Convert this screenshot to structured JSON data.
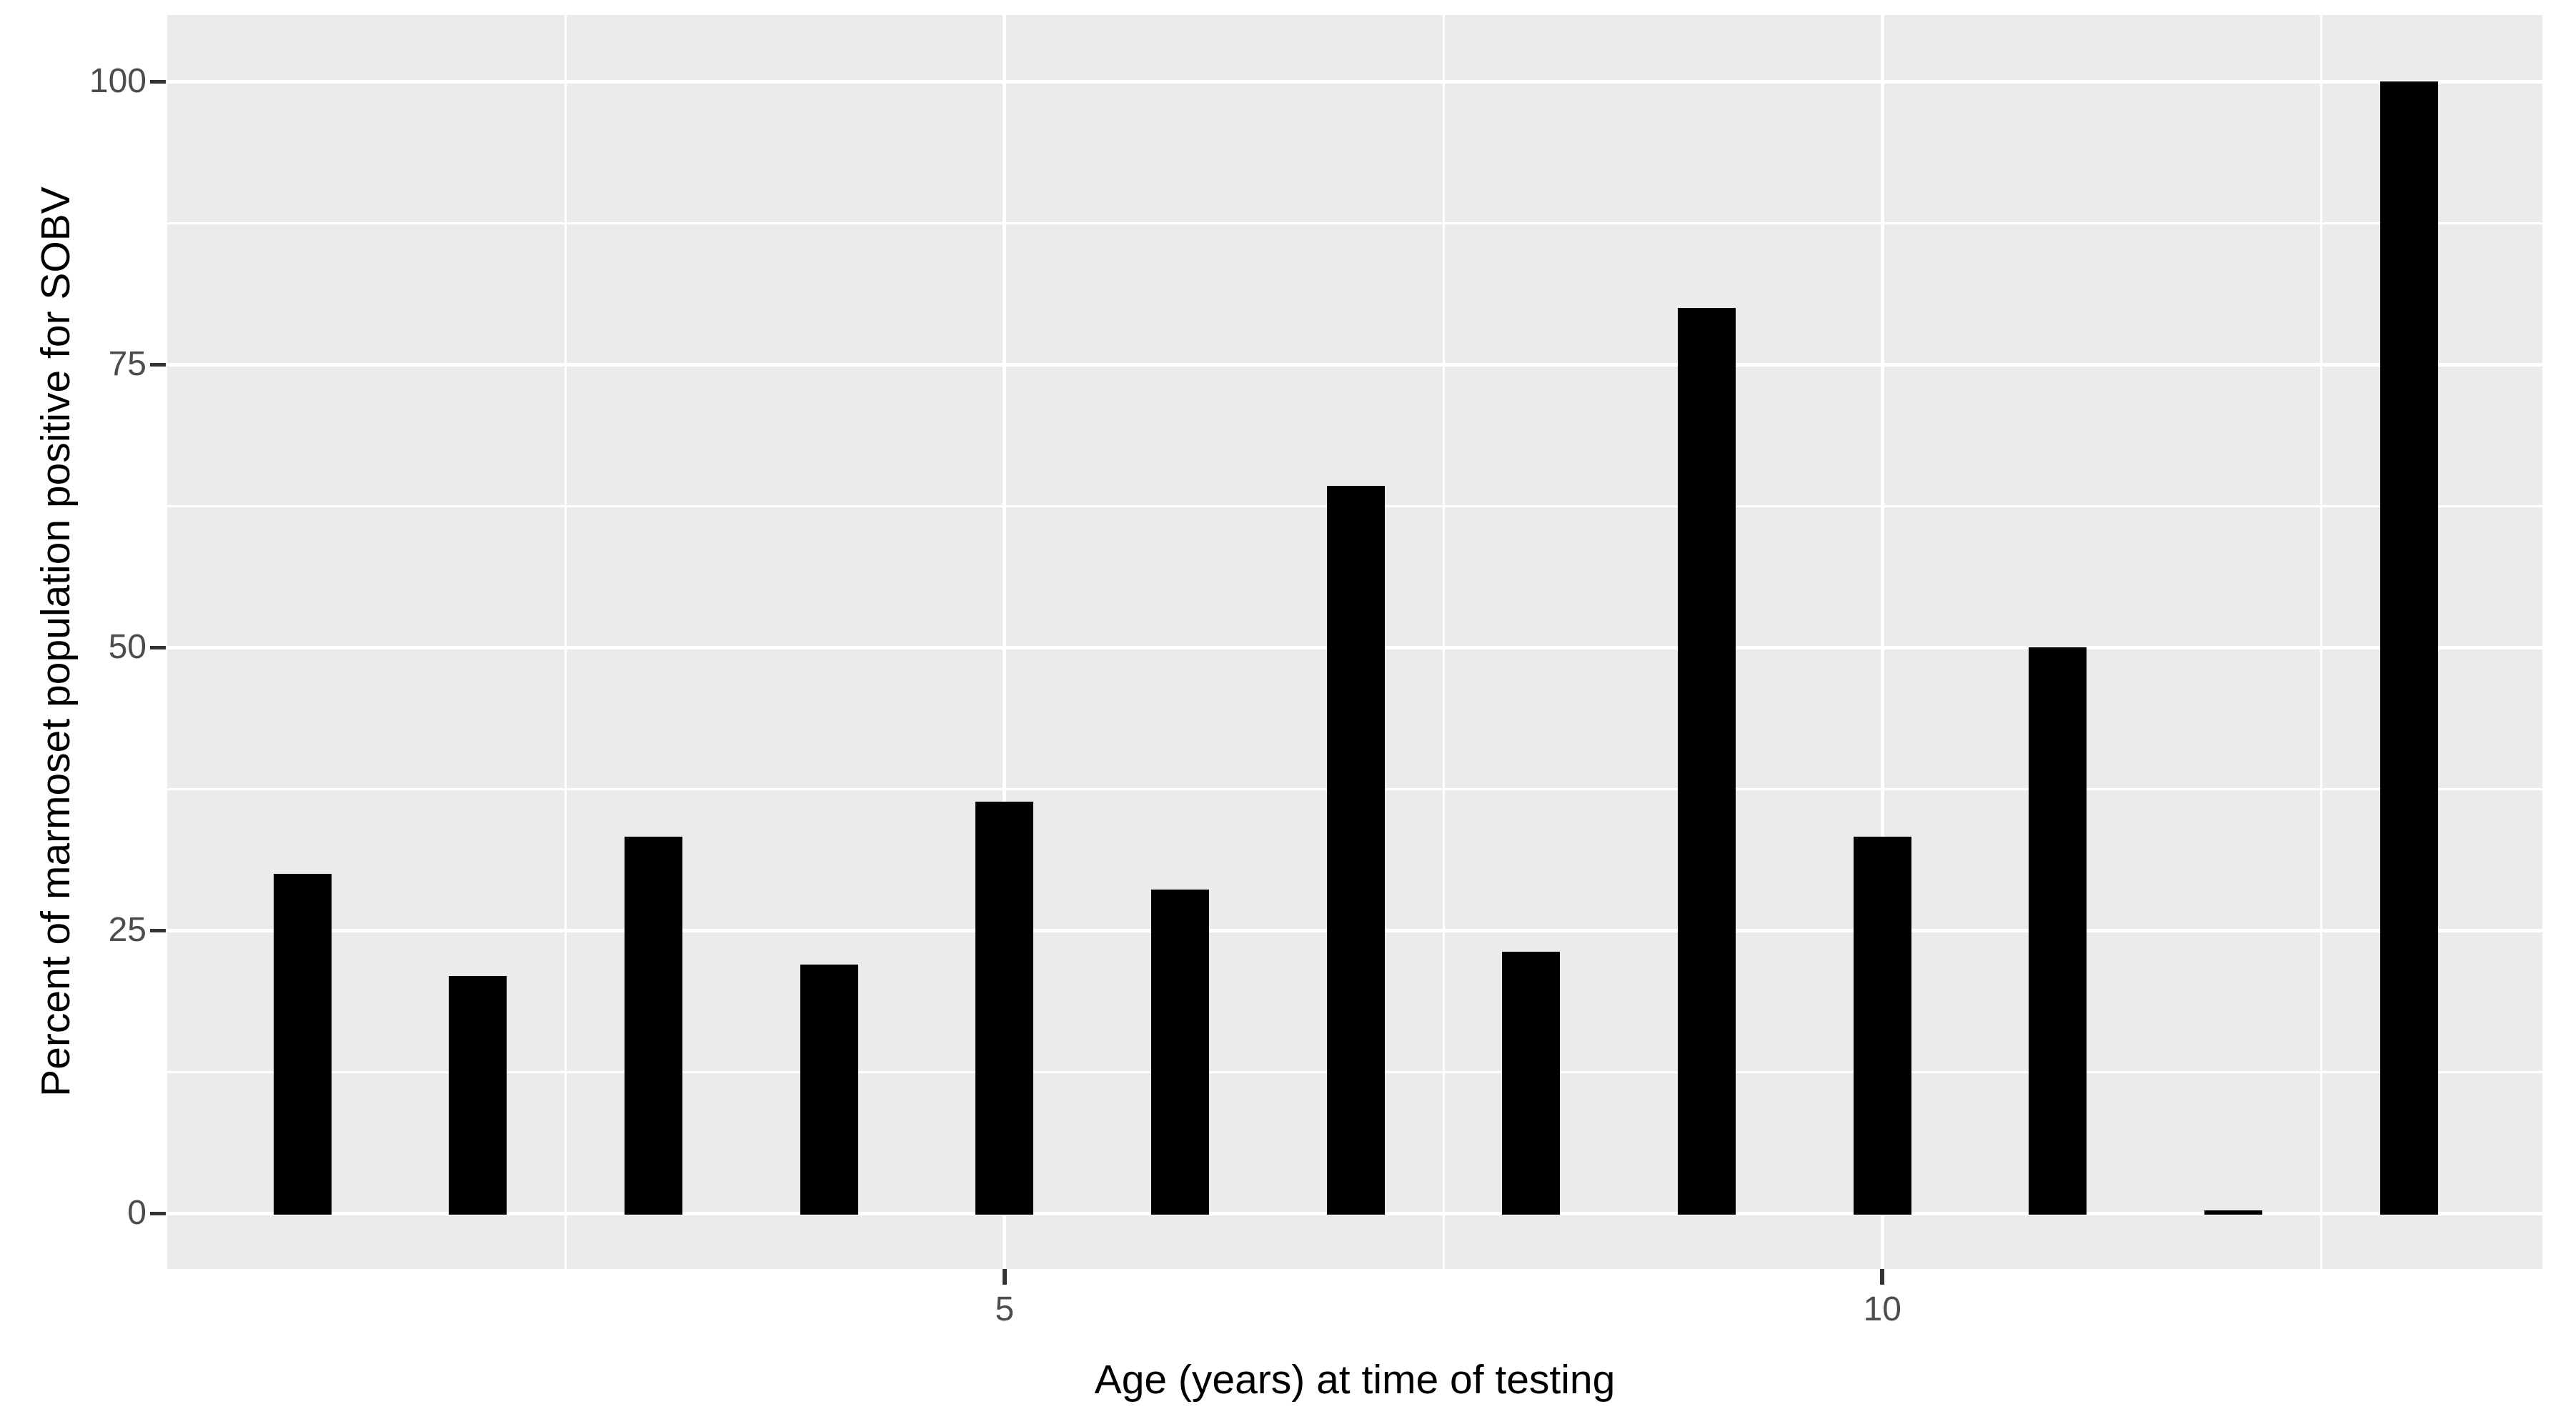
{
  "chart_data": {
    "type": "bar",
    "title": "",
    "xlabel": "Age (years) at time of testing",
    "ylabel": "Percent of marmoset population positive for SOBV",
    "categories": [
      1,
      2,
      3,
      4,
      5,
      6,
      7,
      8,
      9,
      10,
      11,
      12,
      13
    ],
    "values": [
      30,
      21,
      33.3,
      22,
      36.4,
      28.6,
      64.3,
      23.1,
      80,
      33.3,
      50,
      0,
      100
    ],
    "x_ticks": [
      {
        "value": 5,
        "label": "5"
      },
      {
        "value": 10,
        "label": "10"
      }
    ],
    "y_ticks": [
      {
        "value": 0,
        "label": "0"
      },
      {
        "value": 25,
        "label": "25"
      },
      {
        "value": 50,
        "label": "50"
      },
      {
        "value": 75,
        "label": "75"
      },
      {
        "value": 100,
        "label": "100"
      }
    ],
    "x_minor_breaks": [
      2.5,
      7.5,
      12.5
    ],
    "y_minor_breaks": [
      12.5,
      37.5,
      62.5,
      87.5
    ],
    "xlim": [
      0.23,
      13.76
    ],
    "ylim": [
      -4.9,
      105.9
    ],
    "bar_width_units": 0.33,
    "grid": "major-and-minor-on",
    "legend_position": "none",
    "zero_value_rendered_as_thin_line": true,
    "colors": {
      "bar": "#000000",
      "panel_background": "#EBEBEB",
      "gridline": "#FFFFFF",
      "tick_label": "#4D4D4D",
      "tick_mark": "#333333",
      "axis_title": "#000000",
      "figure_background": "#FFFFFF"
    }
  }
}
